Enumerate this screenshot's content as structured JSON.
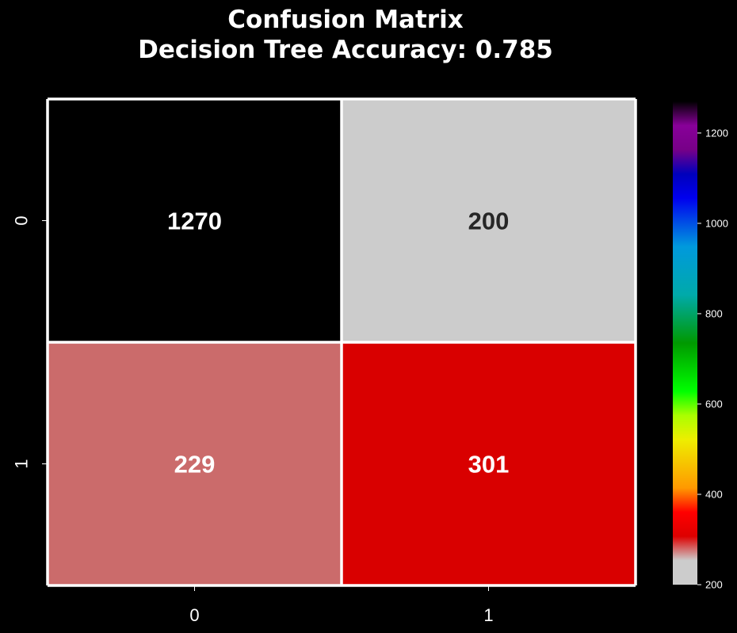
{
  "chart_data": {
    "type": "heatmap",
    "title_lines": [
      "Confusion Matrix",
      "Decision Tree Accuracy: 0.785"
    ],
    "row_labels": [
      "0",
      "1"
    ],
    "col_labels": [
      "0",
      "1"
    ],
    "values": [
      [
        1270,
        200
      ],
      [
        229,
        301
      ]
    ],
    "cell_colors": [
      [
        "#000000",
        "#cccccc"
      ],
      [
        "#cb6b6b",
        "#d90000"
      ]
    ],
    "annotation_colors": [
      [
        "#ffffff",
        "#262626"
      ],
      [
        "#ffffff",
        "#ffffff"
      ]
    ],
    "xlabel": "",
    "ylabel": "",
    "colorbar": {
      "colormap": "nipy_spectral_r",
      "vmin": 200,
      "vmax": 1270,
      "ticks": [
        200,
        400,
        600,
        800,
        1000,
        1200
      ]
    },
    "grid": true,
    "legend": "colorbar right"
  }
}
